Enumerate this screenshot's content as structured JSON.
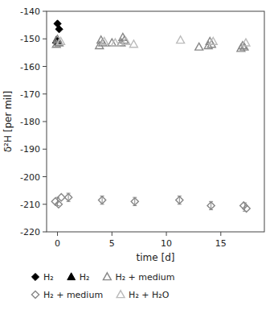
{
  "chart_data": {
    "type": "scatter",
    "xlabel": "time [d]",
    "ylabel": "δ²H [per mil]",
    "xlim": [
      -1,
      19
    ],
    "ylim": [
      -220,
      -140
    ],
    "xticks": [
      0,
      5,
      10,
      15
    ],
    "yticks": [
      -220,
      -210,
      -200,
      -190,
      -180,
      -170,
      -160,
      -150,
      -140
    ],
    "grid": false,
    "legend": "bottom",
    "series": [
      {
        "name": "H₂",
        "color": "#000000",
        "marker": "diamond",
        "x": [
          0.0,
          0.15
        ],
        "values": [
          -144.5,
          -146.5
        ]
      },
      {
        "name": "H₂",
        "color": "#000000",
        "marker": "triangle",
        "x": [
          -0.1,
          0.05
        ],
        "values": [
          -150.5,
          -151.2
        ]
      },
      {
        "name": "H₂ + medium",
        "color": "#888888",
        "marker": "triangle-open",
        "x": [
          0.0,
          0.15,
          -0.1,
          4.0,
          4.15,
          3.85,
          5.0,
          6.0,
          6.15,
          5.85,
          13.0,
          14.0,
          14.15,
          13.85,
          17.0,
          17.15,
          16.85
        ],
        "values": [
          -150.2,
          -151.5,
          -152.0,
          -150.5,
          -151.5,
          -152.5,
          -151.5,
          -149.5,
          -150.5,
          -151.5,
          -153.0,
          -151.0,
          -152.0,
          -152.5,
          -152.5,
          -153.0,
          -153.5
        ]
      },
      {
        "name": "H₂ + medium",
        "color": "#888888",
        "marker": "diamond-open",
        "x": [
          -0.2,
          0.1,
          0.35,
          1.0,
          4.1,
          7.1,
          11.2,
          14.1,
          17.1,
          17.35
        ],
        "values": [
          -209.0,
          -210.0,
          -207.5,
          -207.5,
          -208.5,
          -209.0,
          -208.5,
          -210.5,
          -210.5,
          -211.5
        ]
      },
      {
        "name": "H₂ + H₂O",
        "color": "#bbbbbb",
        "marker": "triangle-open",
        "x": [
          0.3,
          4.3,
          5.3,
          6.3,
          7.0,
          11.3,
          14.3,
          17.3
        ],
        "values": [
          -151.0,
          -151.0,
          -151.5,
          -151.0,
          -152.0,
          -150.5,
          -151.0,
          -151.5
        ]
      },
      {
        "type": "errorbar",
        "color": "#888888",
        "x": [
          0.0,
          1.0,
          4.1,
          7.1,
          11.2,
          14.1,
          17.2
        ],
        "values": [
          -209.0,
          -207.5,
          -208.5,
          -209.0,
          -208.5,
          -210.5,
          -211.0
        ],
        "error": 1.5
      }
    ]
  }
}
